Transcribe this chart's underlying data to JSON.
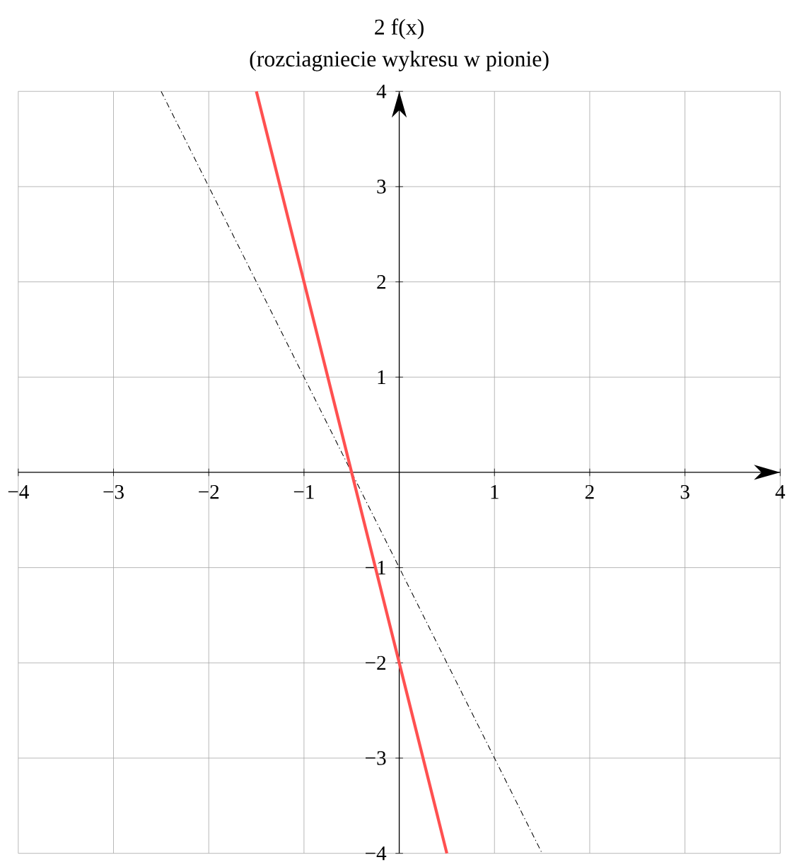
{
  "chart_data": {
    "type": "line",
    "title": "2 f(x)",
    "subtitle": "(rozciagniecie wykresu w pionie)",
    "series": [
      {
        "x": [
          -2.5,
          1.5
        ],
        "values": [
          4,
          -4
        ],
        "color": "#000000",
        "line_style": "dashed"
      },
      {
        "x": [
          -1.5,
          0.5
        ],
        "values": [
          4,
          -4
        ],
        "color": "#ff5050",
        "line_style": "solid"
      }
    ],
    "xlim": [
      -4,
      4
    ],
    "ylim": [
      -4,
      4
    ],
    "xticks": [
      {
        "value": -4,
        "label": "−4"
      },
      {
        "value": -3,
        "label": "−3"
      },
      {
        "value": -2,
        "label": "−2"
      },
      {
        "value": -1,
        "label": "−1"
      },
      1,
      2,
      3,
      4
    ],
    "yticks": [
      {
        "value": -4,
        "label": "−4"
      },
      {
        "value": -3,
        "label": "−3"
      },
      {
        "value": -2,
        "label": "−2"
      },
      {
        "value": -1,
        "label": "−1"
      },
      1,
      2,
      3,
      4
    ],
    "grid": true,
    "marker": "none"
  }
}
